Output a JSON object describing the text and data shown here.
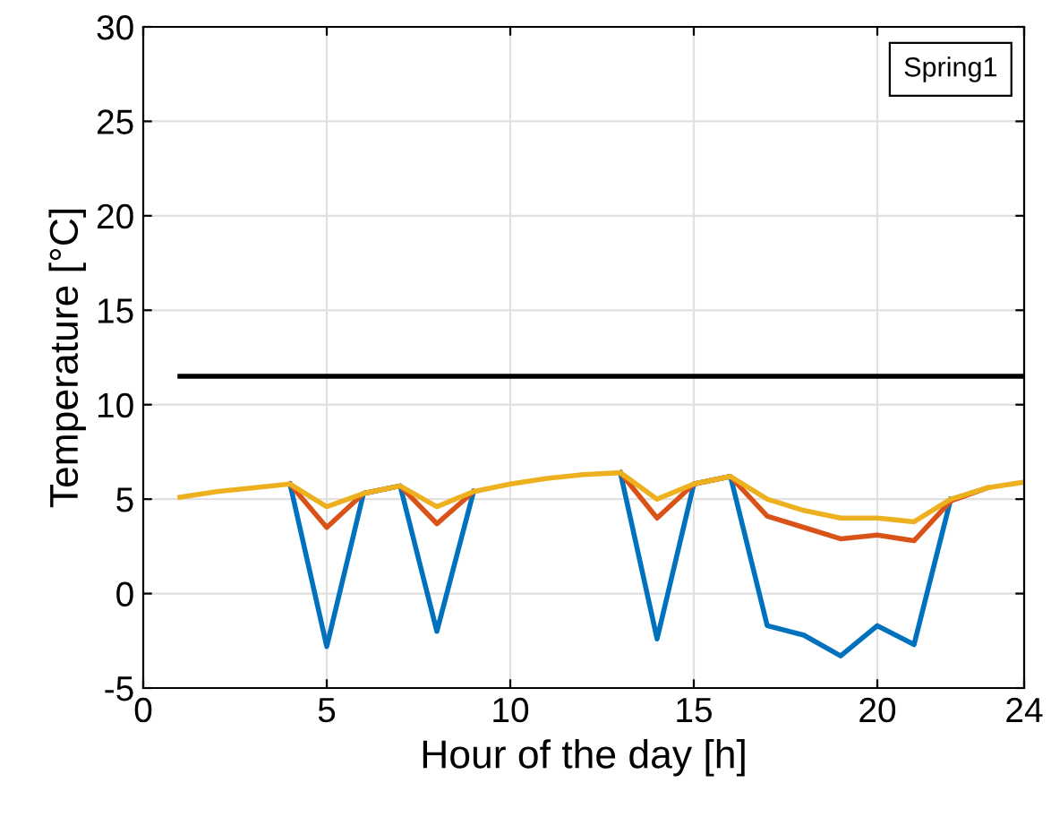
{
  "chart_data": {
    "type": "line",
    "xlabel": "Hour of the day [h]",
    "ylabel": "Temperature [°C]",
    "x": [
      1,
      2,
      3,
      4,
      5,
      6,
      7,
      8,
      9,
      10,
      11,
      12,
      13,
      14,
      15,
      16,
      17,
      18,
      19,
      20,
      21,
      22,
      23,
      24
    ],
    "series": [
      {
        "color": "#0072bd",
        "values": [
          null,
          null,
          null,
          5.8,
          -2.8,
          5.3,
          5.7,
          -2.0,
          5.4,
          null,
          null,
          null,
          6.4,
          -2.4,
          5.8,
          6.2,
          -1.7,
          -2.2,
          -3.3,
          -1.7,
          -2.7,
          5.0,
          null,
          null
        ]
      },
      {
        "color": "#d95319",
        "values": [
          null,
          null,
          null,
          5.8,
          3.5,
          5.3,
          5.7,
          3.7,
          5.4,
          null,
          null,
          null,
          6.4,
          4.0,
          5.8,
          6.2,
          4.1,
          3.5,
          2.9,
          3.1,
          2.8,
          4.9,
          5.6,
          null
        ]
      },
      {
        "color": "#edb120",
        "values": [
          5.1,
          5.4,
          5.6,
          5.8,
          4.6,
          5.3,
          5.7,
          4.6,
          5.4,
          5.8,
          6.1,
          6.3,
          6.4,
          5.0,
          5.8,
          6.2,
          5.0,
          4.4,
          4.0,
          4.0,
          3.8,
          5.0,
          5.6,
          5.9
        ]
      },
      {
        "color": "#000000",
        "x": [
          1,
          24
        ],
        "values": [
          11.5,
          11.5
        ]
      }
    ],
    "annotations": [
      "Spring1"
    ],
    "xlim": [
      0,
      24
    ],
    "xticks": [
      0,
      5,
      10,
      15,
      20,
      24
    ],
    "ylim": [
      -5,
      30
    ],
    "yticks": [
      -5,
      0,
      5,
      10,
      15,
      20,
      25,
      30
    ],
    "grid": true,
    "line_style": "solid",
    "marker": "none"
  }
}
